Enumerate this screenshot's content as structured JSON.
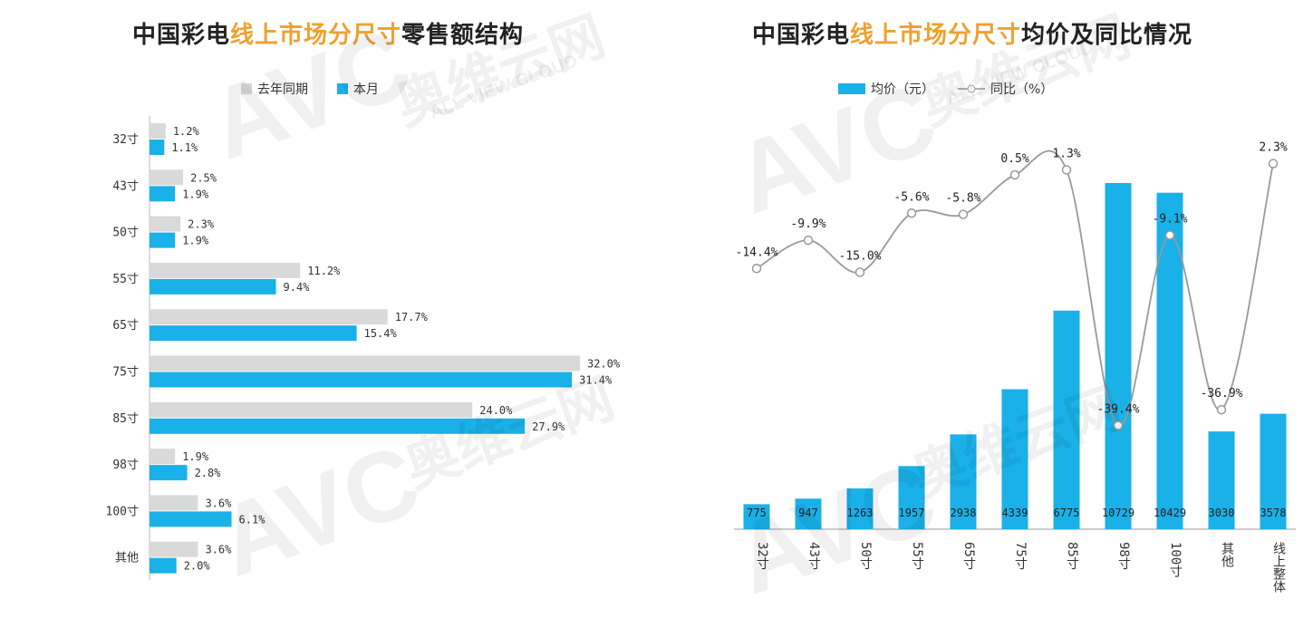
{
  "left": {
    "title_pre": "中国彩电",
    "title_hl": "线上市场分尺寸",
    "title_post": "零售额结构",
    "legend_prev": "去年同期",
    "legend_cur": "本月",
    "colors": {
      "prev": "#d9d9d9",
      "cur": "#1ab0e8"
    }
  },
  "right": {
    "title_pre": "中国彩电",
    "title_hl": "线上市场分尺寸",
    "title_post": "均价及同比情况",
    "legend_bar": "均价（元）",
    "legend_line": "同比（%）",
    "colors": {
      "bar": "#1ab0e8",
      "line": "#999999"
    }
  },
  "watermark": {
    "logo": "AVC",
    "cn": "奥维云网",
    "en": "ALL VIEW CLOUD"
  },
  "chart_data": [
    {
      "type": "bar",
      "orientation": "horizontal",
      "categories": [
        "32寸",
        "43寸",
        "50寸",
        "55寸",
        "65寸",
        "75寸",
        "85寸",
        "98寸",
        "100寸",
        "其他"
      ],
      "series": [
        {
          "name": "去年同期",
          "values": [
            1.2,
            2.5,
            2.3,
            11.2,
            17.7,
            32.0,
            24.0,
            1.9,
            3.6,
            3.6
          ],
          "labels": [
            "1.2%",
            "2.5%",
            "2.3%",
            "11.2%",
            "17.7%",
            "32.0%",
            "24.0%",
            "1.9%",
            "3.6%",
            "3.6%"
          ]
        },
        {
          "name": "本月",
          "values": [
            1.1,
            1.9,
            1.9,
            9.4,
            15.4,
            31.4,
            27.9,
            2.8,
            6.1,
            2.0
          ],
          "labels": [
            "1.1%",
            "1.9%",
            "1.9%",
            "9.4%",
            "15.4%",
            "31.4%",
            "27.9%",
            "2.8%",
            "6.1%",
            "2.0%"
          ]
        }
      ]
    },
    {
      "type": "bar+line",
      "categories": [
        "32寸",
        "43寸",
        "50寸",
        "55寸",
        "65寸",
        "75寸",
        "85寸",
        "98寸",
        "100寸",
        "其他",
        "线上整体"
      ],
      "series": [
        {
          "name": "均价（元）",
          "type": "bar",
          "values": [
            775,
            947,
            1263,
            1957,
            2938,
            4339,
            6775,
            10729,
            10429,
            3030,
            3578
          ],
          "labels": [
            "775",
            "947",
            "1263",
            "1957",
            "2938",
            "4339",
            "6775",
            "10729",
            "10429",
            "3030",
            "3578"
          ]
        },
        {
          "name": "同比（%）",
          "type": "line",
          "values": [
            -14.4,
            -9.9,
            -15.0,
            -5.6,
            -5.8,
            0.5,
            1.3,
            -39.4,
            -9.1,
            -36.9,
            2.3
          ],
          "labels": [
            "-14.4%",
            "-9.9%",
            "-15.0%",
            "-5.6%",
            "-5.8%",
            "0.5%",
            "1.3%",
            "-39.4%",
            "-9.1%",
            "-36.9%",
            "2.3%"
          ]
        }
      ]
    }
  ]
}
